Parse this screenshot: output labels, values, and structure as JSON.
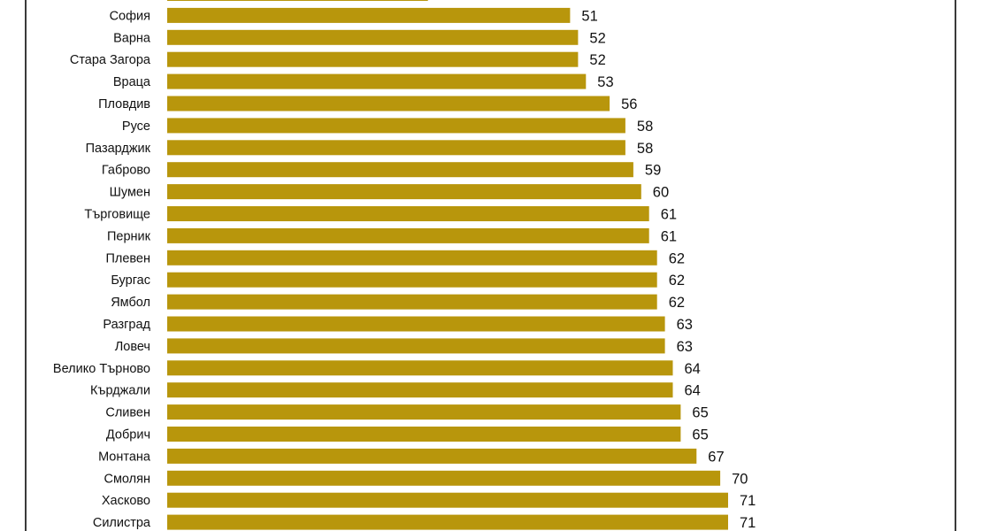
{
  "chart_data": {
    "type": "bar",
    "orientation": "horizontal",
    "bar_color": "#B8960C",
    "categories": [
      "",
      "София",
      "Варна",
      "Стара Загора",
      "Враца",
      "Пловдив",
      "Русе",
      "Пазарджик",
      "Габрово",
      "Шумен",
      "Търговище",
      "Перник",
      "Плевен",
      "Бургас",
      "Ямбол",
      "Разград",
      "Ловеч",
      "Велико Търново",
      "Кърджали",
      "Сливен",
      "Добрич",
      "Монтана",
      "Смолян",
      "Хасково",
      "Силистра"
    ],
    "values": [
      33,
      51,
      52,
      52,
      53,
      56,
      58,
      58,
      59,
      60,
      61,
      61,
      62,
      62,
      62,
      63,
      63,
      64,
      64,
      65,
      65,
      67,
      70,
      71,
      71
    ],
    "value_labels": [
      "",
      "51",
      "52",
      "52",
      "53",
      "56",
      "58",
      "58",
      "59",
      "60",
      "61",
      "61",
      "62",
      "62",
      "62",
      "63",
      "63",
      "64",
      "64",
      "65",
      "65",
      "67",
      "70",
      "71",
      "71"
    ],
    "title": "",
    "xlabel": "",
    "ylabel": "",
    "grid": false,
    "legend": "none"
  }
}
